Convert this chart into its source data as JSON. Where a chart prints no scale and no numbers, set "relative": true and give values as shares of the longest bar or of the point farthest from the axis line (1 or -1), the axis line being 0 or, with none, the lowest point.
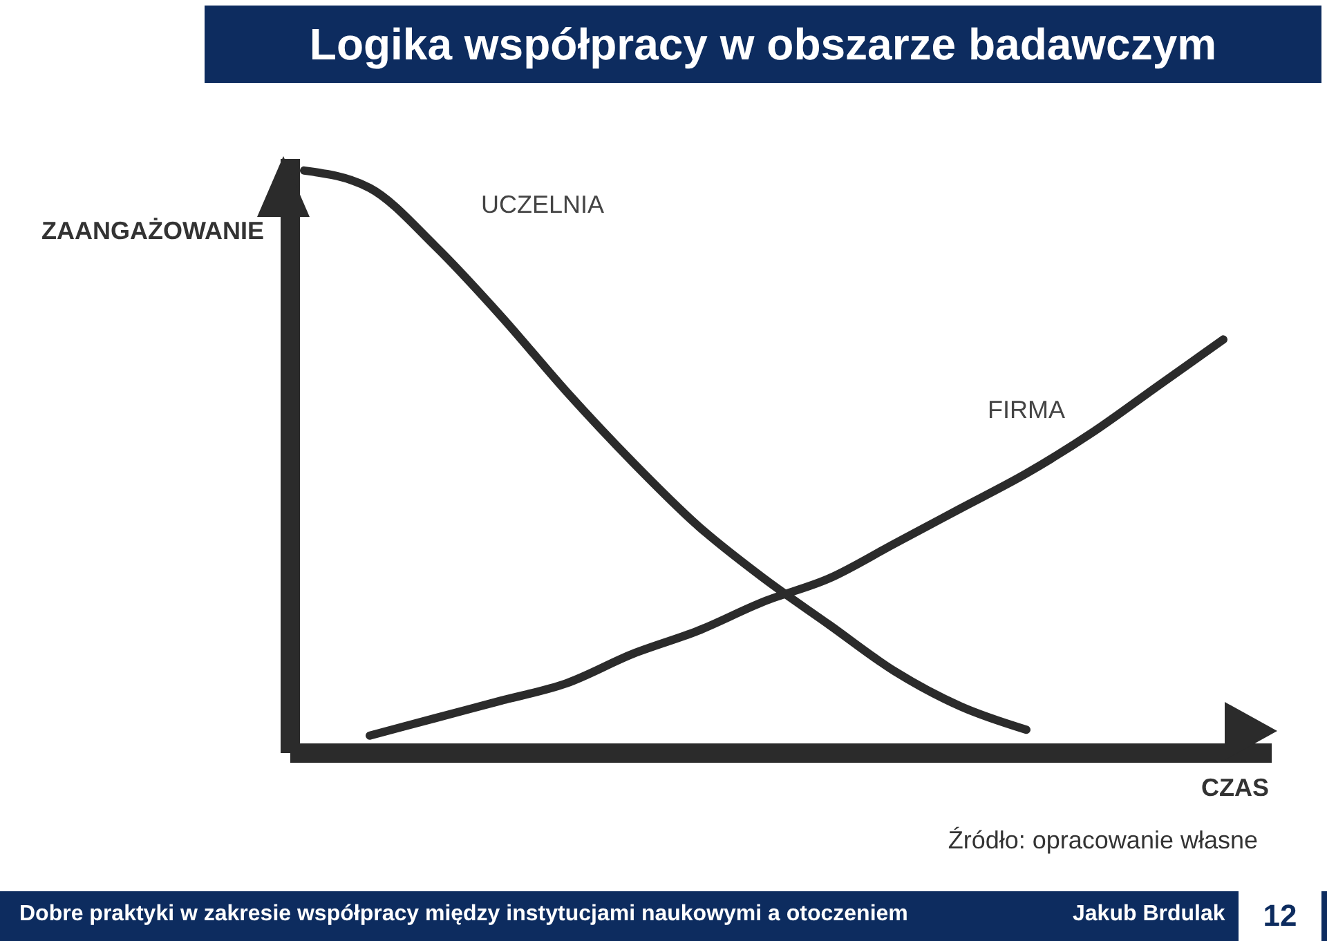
{
  "chart_data": {
    "type": "line",
    "title": "Logika współpracy w obszarze badawczym",
    "xlabel": "CZAS",
    "ylabel": "ZAANGAŻOWANIE",
    "relative": true,
    "legend": false,
    "grid": false,
    "marker": "none",
    "line_style": "solid",
    "categories": [
      null,
      null,
      null,
      null,
      null,
      null,
      null,
      null,
      null,
      null,
      null,
      null,
      null,
      null,
      null
    ],
    "series": [
      {
        "name": "UCZELNIA",
        "color": "#2b2b2b",
        "values": [
          1,
          0.97,
          0.87,
          0.75,
          0.62,
          0.5,
          0.39,
          0.3,
          0.22,
          0.14,
          0.08,
          0.04,
          null,
          null,
          null
        ]
      },
      {
        "name": "FIRMA",
        "color": "#2b2b2b",
        "values": [
          null,
          0.03,
          0.06,
          0.09,
          0.12,
          0.17,
          0.21,
          0.26,
          0.3,
          0.36,
          0.42,
          0.48,
          0.55,
          0.63,
          0.71
        ]
      }
    ],
    "annotations": [
      "Źródło: opracowanie własne",
      "Dobre praktyki w zakresie współpracy między instytucjami naukowymi a otoczeniem",
      "Jakub Brdulak",
      "12"
    ]
  }
}
